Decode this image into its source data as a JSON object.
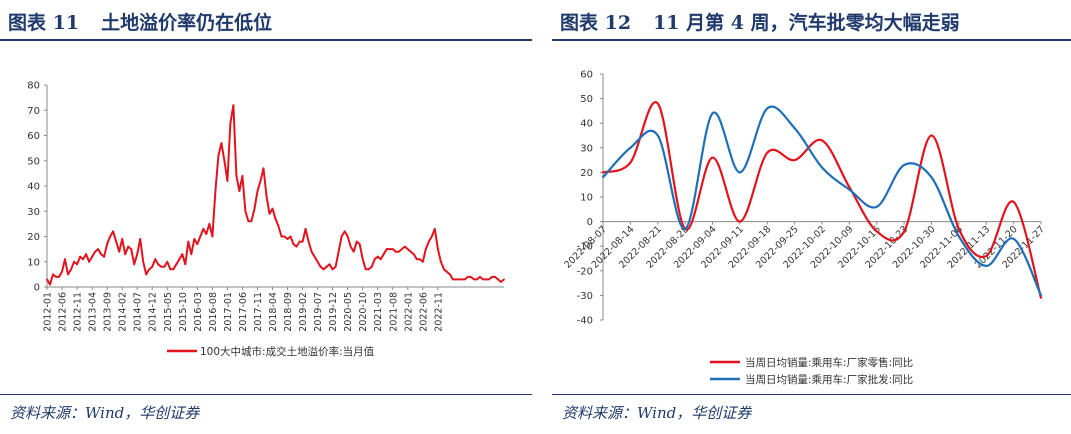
{
  "figures": [
    {
      "label": "图表 11",
      "title": "土地溢价率仍在低位",
      "source": "资料来源：Wind，华创证券"
    },
    {
      "label": "图表 12",
      "title": "11 月第 4 周，汽车批零均大幅走弱",
      "source": "资料来源：Wind，华创证券"
    }
  ],
  "colors": {
    "accent": "#1f3a6b",
    "red": "#e1141e",
    "blue": "#1f6fb8"
  },
  "chart_data": [
    {
      "type": "line",
      "title": "",
      "xlabel": "",
      "ylabel": "",
      "ylim": [
        0,
        80
      ],
      "yticks": [
        0,
        10,
        20,
        30,
        40,
        50,
        60,
        70,
        80
      ],
      "grid": false,
      "legend_position": "bottom",
      "xtick_labels": [
        "2012-01",
        "2012-06",
        "2012-11",
        "2013-04",
        "2013-09",
        "2014-02",
        "2014-07",
        "2014-12",
        "2015-05",
        "2015-10",
        "2016-03",
        "2016-08",
        "2017-01",
        "2017-06",
        "2017-11",
        "2018-04",
        "2018-09",
        "2019-02",
        "2019-07",
        "2019-12",
        "2020-05",
        "2020-10",
        "2021-03",
        "2021-08",
        "2022-01",
        "2022-06",
        "2022-11"
      ],
      "series": [
        {
          "name": "100大中城市:成交土地溢价率:当月值",
          "color": "#e1141e",
          "values": [
            3,
            1,
            5,
            4,
            4,
            6,
            11,
            5,
            7,
            10,
            9,
            12,
            11,
            13,
            10,
            12,
            14,
            15,
            13,
            12,
            17,
            20,
            22,
            18,
            14,
            19,
            13,
            16,
            15,
            9,
            13,
            19,
            10,
            5,
            7,
            8,
            11,
            9,
            8,
            8,
            10,
            7,
            7,
            9,
            11,
            13,
            9,
            18,
            13,
            19,
            17,
            20,
            23,
            21,
            25,
            20,
            38,
            52,
            57,
            50,
            42,
            65,
            72,
            44,
            38,
            44,
            30,
            26,
            26,
            31,
            38,
            42,
            47,
            36,
            29,
            31,
            27,
            24,
            20,
            20,
            19,
            20,
            17,
            16,
            18,
            18,
            23,
            18,
            14,
            12,
            10,
            8,
            7,
            8,
            9,
            7,
            8,
            14,
            20,
            22,
            20,
            16,
            14,
            18,
            17,
            11,
            7,
            7,
            8,
            11,
            12,
            11,
            13,
            15,
            15,
            15,
            14,
            14,
            15,
            16,
            15,
            14,
            13,
            11,
            11,
            10,
            15,
            18,
            20,
            23,
            15,
            10,
            7,
            6,
            5,
            3,
            3,
            3,
            3,
            3,
            4,
            4,
            3,
            3,
            4,
            3,
            3,
            3,
            4,
            4,
            3,
            2,
            3
          ]
        }
      ]
    },
    {
      "type": "line",
      "title": "",
      "xlabel": "",
      "ylabel": "",
      "ylim": [
        -40,
        60
      ],
      "yticks": [
        -40,
        -30,
        -20,
        -10,
        0,
        10,
        20,
        30,
        40,
        50,
        60
      ],
      "grid": false,
      "legend_position": "bottom",
      "categories": [
        "2022-08-07",
        "2022-08-14",
        "2022-08-21",
        "2022-08-28",
        "2022-09-04",
        "2022-09-11",
        "2022-09-18",
        "2022-09-25",
        "2022-10-02",
        "2022-10-09",
        "2022-10-16",
        "2022-10-23",
        "2022-10-30",
        "2022-11-06",
        "2022-11-13",
        "2022-11-20",
        "2022-11-27"
      ],
      "series": [
        {
          "name": "当周日均销量:乘用车:厂家零售:同比",
          "color": "#e1141e",
          "values": [
            20,
            24,
            48,
            -3,
            26,
            0,
            28,
            25,
            33,
            14,
            -4,
            -4,
            35,
            -3,
            -14,
            8,
            -31
          ]
        },
        {
          "name": "当周日均销量:乘用车:厂家批发:同比",
          "color": "#1f6fb8",
          "values": [
            18,
            30,
            35,
            -3,
            44,
            20,
            46,
            38,
            22,
            13,
            6,
            23,
            18,
            -6,
            -18,
            -7,
            -30
          ]
        }
      ]
    }
  ]
}
